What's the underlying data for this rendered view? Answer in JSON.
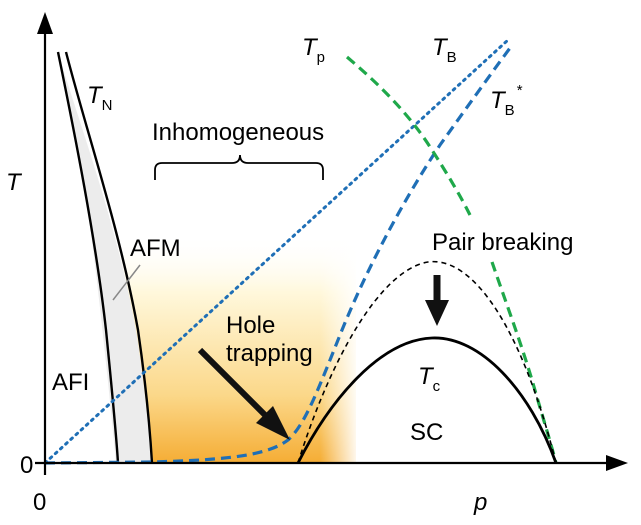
{
  "axes": {
    "x_label": "p",
    "y_label": "T",
    "x_origin": "0",
    "y_origin": "0"
  },
  "curves": {
    "t_n": {
      "main": "T",
      "sub": "N"
    },
    "t_p": {
      "main": "T",
      "sub": "p"
    },
    "t_b": {
      "main": "T",
      "sub": "B"
    },
    "t_b_star": {
      "main": "T",
      "sub": "B",
      "sup": "*"
    },
    "t_c": {
      "main": "T",
      "sub": "c"
    }
  },
  "regions": {
    "inhomogeneous": "Inhomogeneous",
    "afm": "AFM",
    "afi": "AFI",
    "sc": "SC"
  },
  "annotations": {
    "hole_trapping_line1": "Hole",
    "hole_trapping_line2": "trapping",
    "pair_breaking": "Pair breaking"
  },
  "colors": {
    "axis": "#000000",
    "t_b_dotted": "#1f6fb6",
    "t_b_star_dashed": "#1f6fb6",
    "t_p_dashed": "#1fa84a",
    "afm_fill": "#ececec",
    "gradient_top": "#fffbe8",
    "gradient_bottom": "#f7b53a"
  }
}
